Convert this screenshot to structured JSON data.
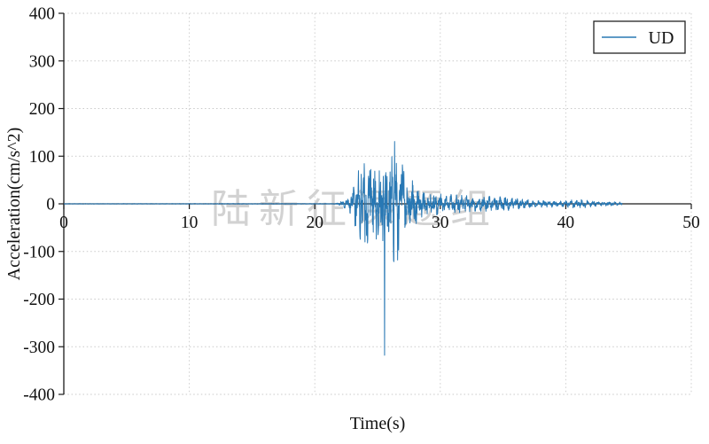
{
  "figure": {
    "watermark": "陆新征课题组",
    "background": "#ffffff"
  },
  "chart_data": {
    "type": "line",
    "title": "",
    "xlabel": "Time(s)",
    "ylabel": "Acceleration(cm/s^2)",
    "xlim": [
      0,
      50
    ],
    "ylim": [
      -400,
      400
    ],
    "xticks": [
      0,
      10,
      20,
      30,
      40,
      50
    ],
    "yticks": [
      -400,
      -300,
      -200,
      -100,
      0,
      100,
      200,
      300,
      400
    ],
    "grid": "dashed",
    "grid_color": "#c9c9c9",
    "axis_color": "#1a1a1a",
    "legend": {
      "position": "top-right",
      "entries": [
        {
          "label": "UD",
          "color": "#2878b4"
        }
      ]
    },
    "series": [
      {
        "name": "UD",
        "color": "#2878b4",
        "signal": {
          "t_start": 0,
          "t_end": 44.5,
          "dt": 0.02,
          "units": "cm/s^2",
          "envelope": [
            [
              0,
              0.4
            ],
            [
              21.6,
              0.6
            ],
            [
              22.0,
              3
            ],
            [
              22.6,
              10
            ],
            [
              23.0,
              22
            ],
            [
              23.4,
              55
            ],
            [
              23.8,
              70
            ],
            [
              24.5,
              72
            ],
            [
              25.0,
              62
            ],
            [
              25.5,
              65
            ],
            [
              26.0,
              78
            ],
            [
              26.35,
              105
            ],
            [
              26.7,
              85
            ],
            [
              27.2,
              55
            ],
            [
              27.8,
              40
            ],
            [
              28.5,
              26
            ],
            [
              29.5,
              20
            ],
            [
              31.0,
              16
            ],
            [
              33.0,
              13
            ],
            [
              35.0,
              13
            ],
            [
              36.5,
              8
            ],
            [
              38.0,
              6
            ],
            [
              40.0,
              6
            ],
            [
              41.0,
              8
            ],
            [
              42.5,
              4
            ],
            [
              44.5,
              3
            ]
          ],
          "peak_events": [
            {
              "t": 23.7,
              "value": 62
            },
            {
              "t": 24.0,
              "value": -80
            },
            {
              "t": 24.45,
              "value": 72
            },
            {
              "t": 24.9,
              "value": -74
            },
            {
              "t": 25.45,
              "value": 58
            },
            {
              "t": 25.55,
              "value": -318
            },
            {
              "t": 26.35,
              "value": 131
            },
            {
              "t": 26.6,
              "value": -118
            },
            {
              "t": 27.1,
              "value": 68
            }
          ],
          "peak_positive": {
            "t": 26.35,
            "value": 131
          },
          "peak_negative": {
            "t": 25.55,
            "value": -318
          }
        }
      }
    ]
  }
}
